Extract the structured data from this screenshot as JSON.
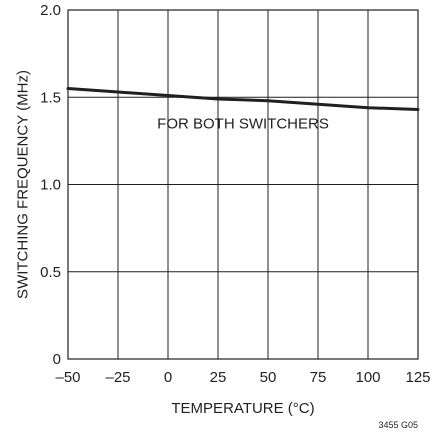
{
  "chart_data": {
    "type": "line",
    "title": "",
    "xlabel": "TEMPERATURE (°C)",
    "ylabel": "SWITCHING FREQUENCY (MHz)",
    "xlim": [
      -50,
      125
    ],
    "ylim": [
      0,
      2.0
    ],
    "x_ticks": [
      -50,
      -25,
      0,
      25,
      50,
      75,
      100,
      125
    ],
    "x_tick_labels": [
      "–50",
      "–25",
      "0",
      "25",
      "50",
      "75",
      "100",
      "125"
    ],
    "y_ticks": [
      0,
      0.5,
      1.0,
      1.5,
      2.0
    ],
    "y_tick_labels": [
      "0",
      "0.5",
      "1.0",
      "1.5",
      "2.0"
    ],
    "grid": true,
    "series": [
      {
        "x": [
          -50,
          -25,
          0,
          25,
          50,
          75,
          100,
          125
        ],
        "values": [
          1.55,
          1.53,
          1.51,
          1.49,
          1.48,
          1.46,
          1.44,
          1.43
        ]
      }
    ],
    "annotation": "FOR BOTH SWITCHERS",
    "annotation_at": {
      "x": 37.5,
      "y": 1.32
    },
    "figure_id": "3455 G05"
  }
}
